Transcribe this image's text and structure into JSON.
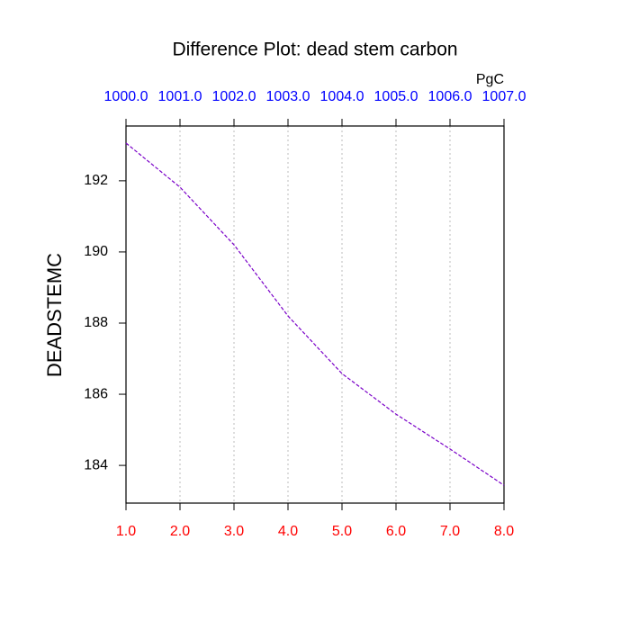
{
  "chart_data": {
    "type": "line",
    "title": "Difference Plot: dead stem carbon",
    "units": "PgC",
    "ylabel": "DEADSTEMC",
    "x": [
      1,
      2,
      3,
      4,
      5,
      6,
      7,
      8
    ],
    "series": [
      {
        "color": "#7a00c8",
        "values": [
          193.06,
          191.82,
          190.2,
          188.2,
          186.58,
          185.44,
          184.46,
          183.44
        ]
      }
    ],
    "xlim": [
      1,
      8
    ],
    "xticks": [
      {
        "value": 1,
        "label": "1.0"
      },
      {
        "value": 2,
        "label": "2.0"
      },
      {
        "value": 3,
        "label": "3.0"
      },
      {
        "value": 4,
        "label": "4.0"
      },
      {
        "value": 5,
        "label": "5.0"
      },
      {
        "value": 6,
        "label": "6.0"
      },
      {
        "value": 7,
        "label": "7.0"
      },
      {
        "value": 8,
        "label": "8.0"
      }
    ],
    "xtick_color": "#ff0000",
    "x2lim": [
      1000,
      1007
    ],
    "x2ticks": [
      {
        "value": 1000,
        "label": "1000.0"
      },
      {
        "value": 1001,
        "label": "1001.0"
      },
      {
        "value": 1002,
        "label": "1002.0"
      },
      {
        "value": 1003,
        "label": "1003.0"
      },
      {
        "value": 1004,
        "label": "1004.0"
      },
      {
        "value": 1005,
        "label": "1005.0"
      },
      {
        "value": 1006,
        "label": "1006.0"
      },
      {
        "value": 1007,
        "label": "1007.0"
      }
    ],
    "x2tick_color": "#0000ff",
    "ylim": [
      182.94,
      193.54
    ],
    "yticks": [
      184,
      186,
      188,
      190,
      192
    ],
    "grid": true
  }
}
